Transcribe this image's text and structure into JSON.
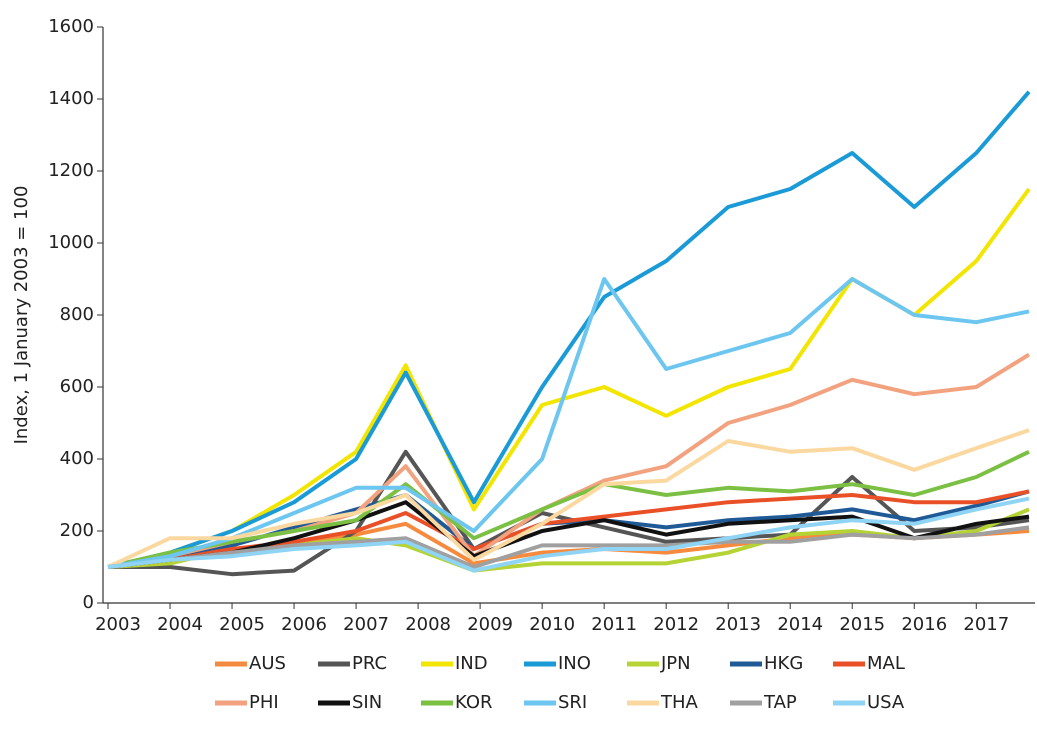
{
  "chart_data": {
    "type": "line",
    "ylabel": "Index, 1 January 2003 = 100",
    "x": [
      2003,
      2004,
      2005,
      2006,
      2007,
      2007.8,
      2008.9,
      2010,
      2011,
      2012,
      2013,
      2014,
      2015,
      2016,
      2017,
      2017.85
    ],
    "xlim": [
      2003,
      2017.85
    ],
    "xticks": [
      2003,
      2004,
      2005,
      2006,
      2007,
      2008,
      2009,
      2010,
      2011,
      2012,
      2013,
      2014,
      2015,
      2016,
      2017
    ],
    "ylim": [
      0,
      1600
    ],
    "yticks": [
      0,
      200,
      400,
      600,
      800,
      1000,
      1200,
      1400,
      1600
    ],
    "series": [
      {
        "name": "AUS",
        "color": "#f68b3f",
        "values": [
          100,
          120,
          140,
          160,
          190,
          220,
          110,
          140,
          150,
          140,
          160,
          180,
          190,
          180,
          190,
          200
        ]
      },
      {
        "name": "PRC",
        "color": "#555555",
        "values": [
          100,
          100,
          80,
          90,
          200,
          420,
          150,
          250,
          210,
          170,
          180,
          190,
          350,
          200,
          210,
          230
        ]
      },
      {
        "name": "IND",
        "color": "#f2e600",
        "values": [
          100,
          140,
          200,
          300,
          420,
          660,
          260,
          550,
          600,
          520,
          600,
          650,
          900,
          800,
          950,
          1150
        ]
      },
      {
        "name": "INO",
        "color": "#1a9ad6",
        "values": [
          100,
          140,
          200,
          280,
          400,
          640,
          280,
          600,
          850,
          950,
          1100,
          1150,
          1250,
          1100,
          1250,
          1420
        ]
      },
      {
        "name": "JPN",
        "color": "#b5d334",
        "values": [
          100,
          110,
          150,
          160,
          180,
          160,
          90,
          110,
          110,
          110,
          140,
          190,
          200,
          180,
          200,
          260
        ]
      },
      {
        "name": "HKG",
        "color": "#1f5a96",
        "values": [
          100,
          130,
          160,
          210,
          260,
          300,
          150,
          220,
          230,
          210,
          230,
          240,
          260,
          230,
          270,
          310
        ]
      },
      {
        "name": "MAL",
        "color": "#ea5028",
        "values": [
          100,
          120,
          150,
          170,
          200,
          250,
          150,
          220,
          240,
          260,
          280,
          290,
          300,
          280,
          280,
          310
        ]
      },
      {
        "name": "PHI",
        "color": "#f2a27e",
        "values": [
          100,
          130,
          170,
          200,
          250,
          380,
          130,
          260,
          340,
          380,
          500,
          550,
          620,
          580,
          600,
          690
        ]
      },
      {
        "name": "SIN",
        "color": "#111111",
        "values": [
          100,
          120,
          140,
          180,
          230,
          280,
          130,
          200,
          230,
          190,
          220,
          230,
          240,
          180,
          220,
          240
        ]
      },
      {
        "name": "KOR",
        "color": "#7bc043",
        "values": [
          100,
          140,
          170,
          200,
          230,
          330,
          180,
          260,
          330,
          300,
          320,
          310,
          330,
          300,
          350,
          420
        ]
      },
      {
        "name": "SRI",
        "color": "#6cc6ef",
        "values": [
          100,
          130,
          180,
          250,
          320,
          320,
          200,
          400,
          900,
          650,
          700,
          750,
          900,
          800,
          780,
          810
        ]
      },
      {
        "name": "THA",
        "color": "#fbd8a0",
        "values": [
          100,
          180,
          180,
          220,
          250,
          300,
          120,
          220,
          330,
          340,
          450,
          420,
          430,
          370,
          430,
          480
        ]
      },
      {
        "name": "TAP",
        "color": "#a0a0a0",
        "values": [
          100,
          120,
          140,
          160,
          170,
          180,
          100,
          160,
          160,
          160,
          170,
          170,
          190,
          180,
          190,
          210
        ]
      },
      {
        "name": "USA",
        "color": "#8fd4f4",
        "values": [
          100,
          120,
          130,
          150,
          160,
          170,
          90,
          130,
          150,
          150,
          180,
          210,
          230,
          220,
          260,
          290
        ]
      }
    ]
  }
}
